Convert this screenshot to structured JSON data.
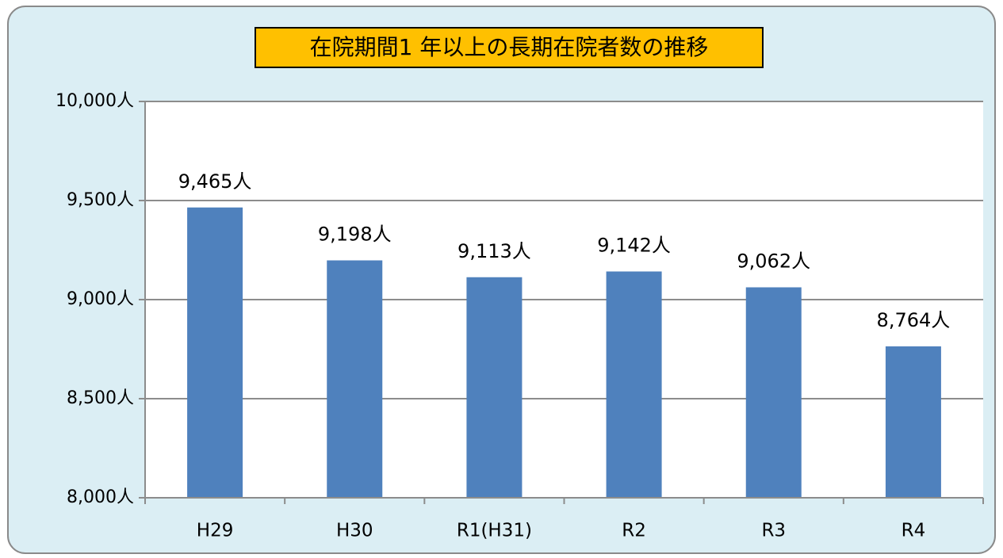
{
  "chart_data": {
    "type": "bar",
    "title": "在院期間1 年以上の長期在院者数の推移",
    "categories": [
      "H29",
      "H30",
      "R1(H31)",
      "R2",
      "R3",
      "R4"
    ],
    "values": [
      9465,
      9198,
      9113,
      9142,
      9062,
      8764
    ],
    "value_labels": [
      "9,465人",
      "9,198人",
      "9,113人",
      "9,142人",
      "9,062人",
      "8,764人"
    ],
    "color": "#4f81bd",
    "ylim": [
      8000,
      10000
    ],
    "yticks": [
      {
        "value": 8000,
        "label": "8,000人"
      },
      {
        "value": 8500,
        "label": "8,500人"
      },
      {
        "value": 9000,
        "label": "9,000人"
      },
      {
        "value": 9500,
        "label": "9,500人"
      },
      {
        "value": 10000,
        "label": "10,000人"
      }
    ],
    "grid": true
  }
}
